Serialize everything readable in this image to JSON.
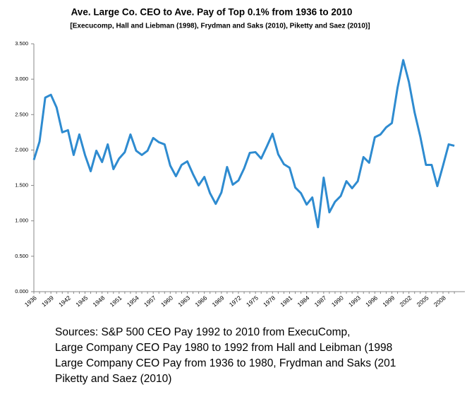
{
  "chart_data": {
    "type": "line",
    "title": "Ave. Large Co. CEO to Ave. Pay of Top 0.1% from 1936 to 2010",
    "subtitle": "[Execucomp, Hall and Liebman (1998), Frydman and Saks (2010), Piketty and Saez (2010)]",
    "categories": [
      "1936",
      null,
      null,
      "1939",
      null,
      null,
      "1942",
      null,
      null,
      "1945",
      null,
      null,
      "1948",
      null,
      null,
      "1951",
      null,
      null,
      "1954",
      null,
      null,
      "1957",
      null,
      null,
      "1960",
      null,
      null,
      "1963",
      null,
      null,
      "1966",
      null,
      null,
      "1969",
      null,
      null,
      "1972",
      null,
      null,
      "1975",
      null,
      null,
      "1978",
      null,
      null,
      "1981",
      null,
      null,
      "1984",
      null,
      null,
      "1987",
      null,
      null,
      "1990",
      null,
      null,
      "1993",
      null,
      null,
      "1996",
      null,
      null,
      "1999",
      null,
      null,
      "2002",
      null,
      null,
      "2005",
      null,
      null,
      "2008",
      null,
      null
    ],
    "values": [
      1.86,
      2.12,
      2.74,
      2.78,
      2.6,
      2.25,
      2.28,
      1.93,
      2.22,
      1.93,
      1.7,
      1.99,
      1.83,
      2.08,
      1.73,
      1.88,
      1.97,
      2.22,
      1.99,
      1.93,
      1.99,
      2.17,
      2.11,
      2.08,
      1.78,
      1.63,
      1.79,
      1.84,
      1.66,
      1.5,
      1.62,
      1.39,
      1.24,
      1.4,
      1.76,
      1.51,
      1.57,
      1.74,
      1.96,
      1.97,
      1.88,
      2.05,
      2.23,
      1.94,
      1.8,
      1.75,
      1.47,
      1.39,
      1.23,
      1.33,
      0.91,
      1.61,
      1.12,
      1.27,
      1.35,
      1.56,
      1.46,
      1.56,
      1.9,
      1.82,
      2.18,
      2.22,
      2.32,
      2.38,
      2.88,
      3.27,
      2.96,
      2.53,
      2.19,
      1.79,
      1.79,
      1.49,
      1.78,
      2.08,
      2.06
    ],
    "color": "#2e8bd0",
    "ylim": [
      0,
      3.5
    ],
    "yticks": [
      {
        "value": 0,
        "label": "0.000"
      },
      {
        "value": 0.5,
        "label": "0.500"
      },
      {
        "value": 1,
        "label": "1.000"
      },
      {
        "value": 1.5,
        "label": "1.500"
      },
      {
        "value": 2,
        "label": "2.000"
      },
      {
        "value": 2.5,
        "label": "2.500"
      },
      {
        "value": 3,
        "label": "3.000"
      },
      {
        "value": 3.5,
        "label": "3.500"
      }
    ],
    "grid": false,
    "notes": [
      "Sources: S&P 500 CEO Pay 1992 to 2010 from ExecuComp,",
      "Large Company CEO Pay 1980 to 1992 from Hall and Leibman (1998",
      "Large Company CEO Pay from 1936 to 1980, Frydman and Saks (201",
      "Piketty and Saez (2010)"
    ]
  }
}
